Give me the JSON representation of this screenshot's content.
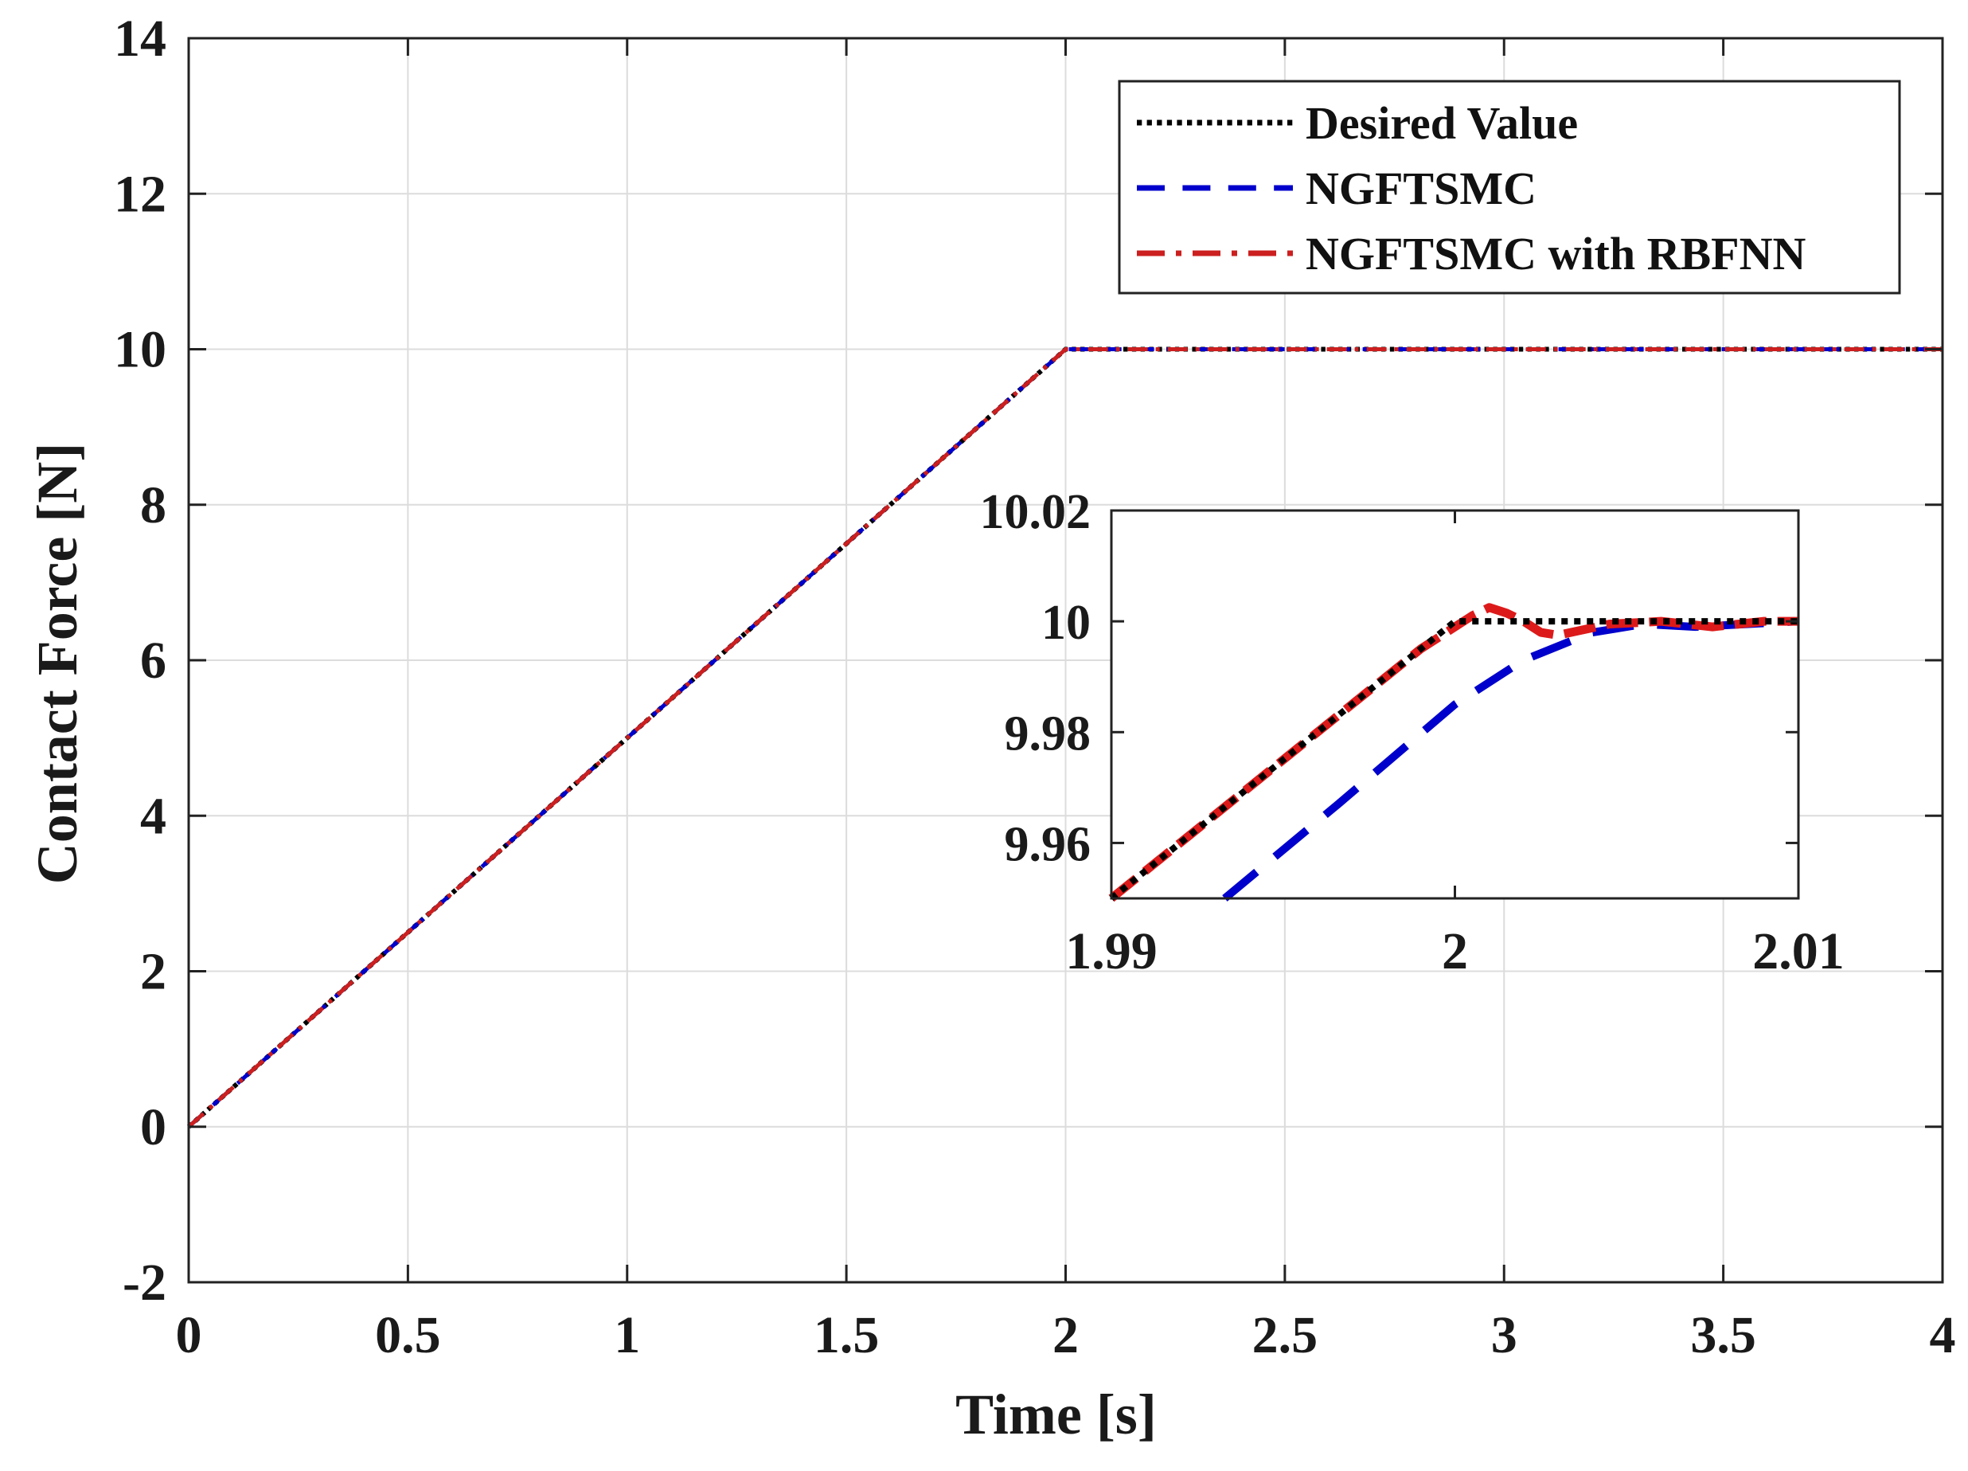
{
  "chart_data": [
    {
      "name": "main",
      "type": "line",
      "xlabel": "Time [s]",
      "ylabel": "Contact Force [N]",
      "xlim": [
        0,
        4
      ],
      "ylim": [
        -2,
        14
      ],
      "xticks": [
        0,
        0.5,
        1,
        1.5,
        2,
        2.5,
        3,
        3.5,
        4
      ],
      "xtick_labels": [
        "0",
        "0.5",
        "1",
        "1.5",
        "2",
        "2.5",
        "3",
        "3.5",
        "4"
      ],
      "yticks": [
        -2,
        0,
        2,
        4,
        6,
        8,
        10,
        12,
        14
      ],
      "ytick_labels": [
        "-2",
        "0",
        "2",
        "4",
        "6",
        "8",
        "10",
        "12",
        "14"
      ],
      "grid": true,
      "legend_position": "top-right",
      "series": [
        {
          "name": "Desired Value",
          "color": "#000000",
          "style": "dotted",
          "x": [
            0,
            2,
            4
          ],
          "y": [
            0,
            10,
            10
          ]
        },
        {
          "name": "NGFTSMC",
          "color": "#0000cc",
          "style": "dashed",
          "x": [
            0,
            2,
            4
          ],
          "y": [
            0,
            10,
            10
          ]
        },
        {
          "name": "NGFTSMC with RBFNN",
          "color": "#cc1f1f",
          "style": "dashdot",
          "x": [
            0,
            2,
            4
          ],
          "y": [
            0,
            10,
            10
          ]
        }
      ]
    },
    {
      "name": "inset",
      "type": "line",
      "xlim": [
        1.99,
        2.01
      ],
      "ylim": [
        9.95,
        10.02
      ],
      "xticks": [
        1.99,
        2,
        2.01
      ],
      "xtick_labels": [
        "1.99",
        "2",
        "2.01"
      ],
      "yticks": [
        9.96,
        9.98,
        10,
        10.02
      ],
      "ytick_labels": [
        "9.96",
        "9.98",
        "10",
        "10.02"
      ],
      "grid": false,
      "series": [
        {
          "name": "Desired Value",
          "color": "#000000",
          "style": "dotted",
          "x": [
            1.99,
            2.0,
            2.01
          ],
          "y": [
            9.95,
            10.0,
            10.0
          ]
        },
        {
          "name": "NGFTSMC",
          "color": "#0000cc",
          "style": "dashed",
          "x": [
            1.9933,
            1.9966,
            2.0,
            2.002,
            2.004,
            2.0055,
            2.007,
            2.01
          ],
          "y": [
            9.95,
            9.967,
            9.985,
            9.993,
            9.998,
            9.9995,
            9.999,
            10.0
          ]
        },
        {
          "name": "NGFTSMC with RBFNN",
          "color": "#dd1a1a",
          "style": "dashed",
          "x": [
            1.99,
            1.995,
            1.999,
            2.0005,
            2.001,
            2.0015,
            2.002,
            2.0025,
            2.003,
            2.0045,
            2.006,
            2.0075,
            2.009,
            2.01
          ],
          "y": [
            9.95,
            9.975,
            9.995,
            10.001,
            10.0025,
            10.0015,
            10.0,
            9.998,
            9.9975,
            9.9995,
            10.0,
            9.999,
            10.0,
            10.0
          ]
        }
      ]
    }
  ]
}
